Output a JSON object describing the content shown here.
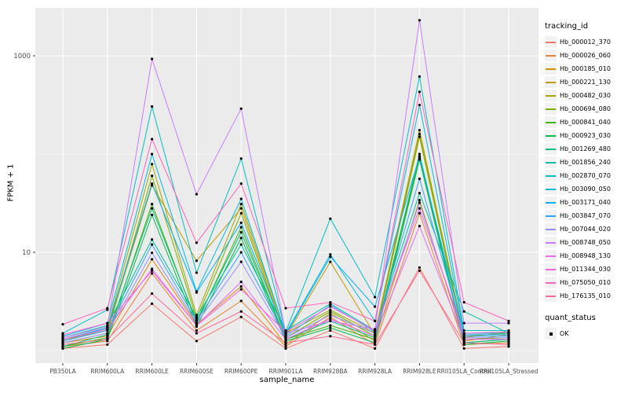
{
  "figure": {
    "panel_background": "#EBEBEB",
    "gridline_color": "#FFFFFF",
    "axis_text_color": "#4D4D4D",
    "tick_color": "#333333",
    "point_color": "#000000"
  },
  "chart_data": {
    "type": "line",
    "title": "",
    "xlabel": "sample_name",
    "ylabel": "FPKM + 1",
    "y_scale": "log10",
    "y_tick_labels": [
      "10",
      "1000"
    ],
    "y_tick_values": [
      10,
      1000
    ],
    "y_minor_gridline_values": [
      1,
      100
    ],
    "ylim": [
      1,
      2600
    ],
    "legend_title": "tracking_id",
    "legend2": {
      "title": "quant_status",
      "items": [
        "OK"
      ]
    },
    "categories": [
      "PB350LA",
      "RRIM600LA",
      "RRIM600LE",
      "RRIM600SE",
      "RRIM600PE",
      "RRIM901LA",
      "RRIM928BA",
      "RRIM928LA",
      "RRIM928LE",
      "RRII105LA_Control",
      "RRII105LA_Stressed"
    ],
    "series": [
      {
        "name": "Hb_000012_370",
        "color": "#F8766D",
        "values": [
          1.05,
          1.15,
          3.0,
          1.25,
          2.2,
          1.05,
          1.6,
          1.05,
          7.0,
          1.05,
          1.1
        ]
      },
      {
        "name": "Hb_000026_060",
        "color": "#EA8331",
        "values": [
          1.1,
          1.25,
          6.1,
          1.6,
          3.2,
          1.1,
          2.2,
          1.15,
          25,
          1.15,
          1.2
        ]
      },
      {
        "name": "Hb_000185_010",
        "color": "#D89000",
        "values": [
          1.2,
          1.4,
          8.5,
          1.85,
          4.5,
          1.15,
          2.4,
          1.25,
          34,
          1.25,
          1.45
        ]
      },
      {
        "name": "Hb_000221_130",
        "color": "#C09B00",
        "values": [
          1.3,
          1.6,
          48,
          8.2,
          28,
          1.4,
          8.0,
          1.45,
          160,
          1.35,
          1.55
        ]
      },
      {
        "name": "Hb_000482_030",
        "color": "#A3A500",
        "values": [
          1.25,
          1.7,
          79,
          2.3,
          31,
          1.5,
          2.6,
          1.5,
          175,
          1.4,
          1.5
        ]
      },
      {
        "name": "Hb_000694_080",
        "color": "#7CAE00",
        "values": [
          1.2,
          1.5,
          60,
          2.1,
          25,
          1.35,
          2.5,
          1.4,
          150,
          1.3,
          1.35
        ]
      },
      {
        "name": "Hb_000841_040",
        "color": "#39B600",
        "values": [
          1.1,
          1.35,
          31,
          1.9,
          18,
          1.3,
          1.8,
          1.3,
          92,
          1.2,
          1.3
        ]
      },
      {
        "name": "Hb_000923_030",
        "color": "#00BB4E",
        "values": [
          1.05,
          1.3,
          24,
          1.75,
          14,
          1.25,
          1.7,
          1.2,
          88,
          1.15,
          1.25
        ]
      },
      {
        "name": "Hb_001269_480",
        "color": "#00BF7D",
        "values": [
          1.1,
          1.45,
          28,
          2.0,
          16,
          1.3,
          2.0,
          1.35,
          100,
          1.2,
          1.3
        ]
      },
      {
        "name": "Hb_001856_240",
        "color": "#00C1A3",
        "values": [
          1.35,
          1.8,
          13.5,
          2.2,
          12,
          1.6,
          3.0,
          1.6,
          40,
          2.5,
          1.5
        ]
      },
      {
        "name": "Hb_002870_070",
        "color": "#00BFC4",
        "values": [
          1.5,
          2.6,
          305,
          6.2,
          90,
          1.55,
          22,
          3.5,
          615,
          1.6,
          1.6
        ]
      },
      {
        "name": "Hb_003090_050",
        "color": "#00BAE0",
        "values": [
          1.4,
          1.9,
          100,
          4.0,
          35,
          1.5,
          9.5,
          2.0,
          316,
          1.5,
          1.5
        ]
      },
      {
        "name": "Hb_003171_040",
        "color": "#00B0F6",
        "values": [
          1.3,
          1.7,
          50,
          3.9,
          20,
          1.45,
          9.0,
          2.8,
          95,
          1.45,
          1.45
        ]
      },
      {
        "name": "Hb_003847_070",
        "color": "#35A2FF",
        "values": [
          1.25,
          1.6,
          12,
          2.0,
          10,
          1.4,
          2.9,
          1.55,
          56,
          1.4,
          1.4
        ]
      },
      {
        "name": "Hb_007044_020",
        "color": "#9590FF",
        "values": [
          1.2,
          1.5,
          9.9,
          1.9,
          8.0,
          1.35,
          2.3,
          1.5,
          32,
          1.35,
          1.35
        ]
      },
      {
        "name": "Hb_008748_050",
        "color": "#C77CFF",
        "values": [
          1.35,
          1.75,
          930,
          39,
          290,
          1.5,
          2.0,
          1.65,
          2300,
          1.9,
          1.9
        ]
      },
      {
        "name": "Hb_008948_130",
        "color": "#E76BF3",
        "values": [
          1.3,
          1.65,
          6.8,
          1.8,
          5.0,
          1.3,
          2.1,
          1.4,
          18.5,
          1.3,
          1.3
        ]
      },
      {
        "name": "Hb_011344_030",
        "color": "#FA62DB",
        "values": [
          1.45,
          1.9,
          6.5,
          1.8,
          4.2,
          1.55,
          2.8,
          1.6,
          28,
          1.5,
          1.55
        ]
      },
      {
        "name": "Hb_075050_010",
        "color": "#FF62BC",
        "values": [
          1.85,
          2.7,
          142,
          12.5,
          50,
          2.7,
          3.1,
          2.0,
          430,
          3.1,
          2.0
        ]
      },
      {
        "name": "Hb_176135_010",
        "color": "#FF6A98",
        "values": [
          1.15,
          1.3,
          3.8,
          1.5,
          2.5,
          1.2,
          1.4,
          1.15,
          6.5,
          1.2,
          1.15
        ]
      }
    ]
  }
}
